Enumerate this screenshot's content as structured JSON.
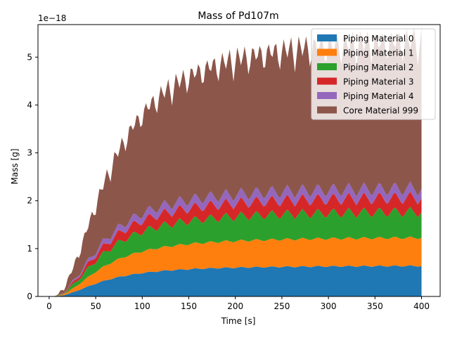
{
  "chart_data": {
    "type": "area",
    "stacked": true,
    "title": "Mass of Pd107m",
    "xlabel": "Time [s]",
    "ylabel": "Mass [g]",
    "y_scale_label": "1e−18",
    "xlim": [
      -12,
      420
    ],
    "ylim": [
      0,
      5.68
    ],
    "xticks": [
      0,
      50,
      100,
      150,
      200,
      250,
      300,
      350,
      400
    ],
    "yticks": [
      0,
      1,
      2,
      3,
      4,
      5
    ],
    "legend_position": "top-right",
    "grid": false,
    "x_start": 0,
    "x_end": 400,
    "x_step": 2,
    "x_unit_note": "values in units of 1e-18 g",
    "series": [
      {
        "name": "Piping Material 0",
        "color": "#1f77b4",
        "profile": "saturating",
        "plateau": 0.65,
        "t_half": 55,
        "ripple": 0.06,
        "ripple_period": 16.5
      },
      {
        "name": "Piping Material 1",
        "color": "#ff7f0e",
        "profile": "saturating",
        "plateau": 0.6,
        "t_half": 55,
        "ripple": 0.05,
        "ripple_period": 16.5
      },
      {
        "name": "Piping Material 2",
        "color": "#2ca02c",
        "profile": "saturating",
        "plateau": 0.55,
        "t_half": 55,
        "ripple": 0.35,
        "ripple_period": 16.5
      },
      {
        "name": "Piping Material 3",
        "color": "#d62728",
        "profile": "saturating",
        "plateau": 0.3,
        "t_half": 55,
        "ripple": 0.2,
        "ripple_period": 16.5
      },
      {
        "name": "Piping Material 4",
        "color": "#9467bd",
        "profile": "saturating",
        "plateau": 0.2,
        "t_half": 55,
        "ripple": 0.18,
        "ripple_period": 16.5
      },
      {
        "name": "Core Material 999",
        "color": "#8c564b",
        "profile": "saturating",
        "plateau": 3.15,
        "t_half": 70,
        "ripple": 0.25,
        "ripple_period": 8.25
      }
    ]
  }
}
